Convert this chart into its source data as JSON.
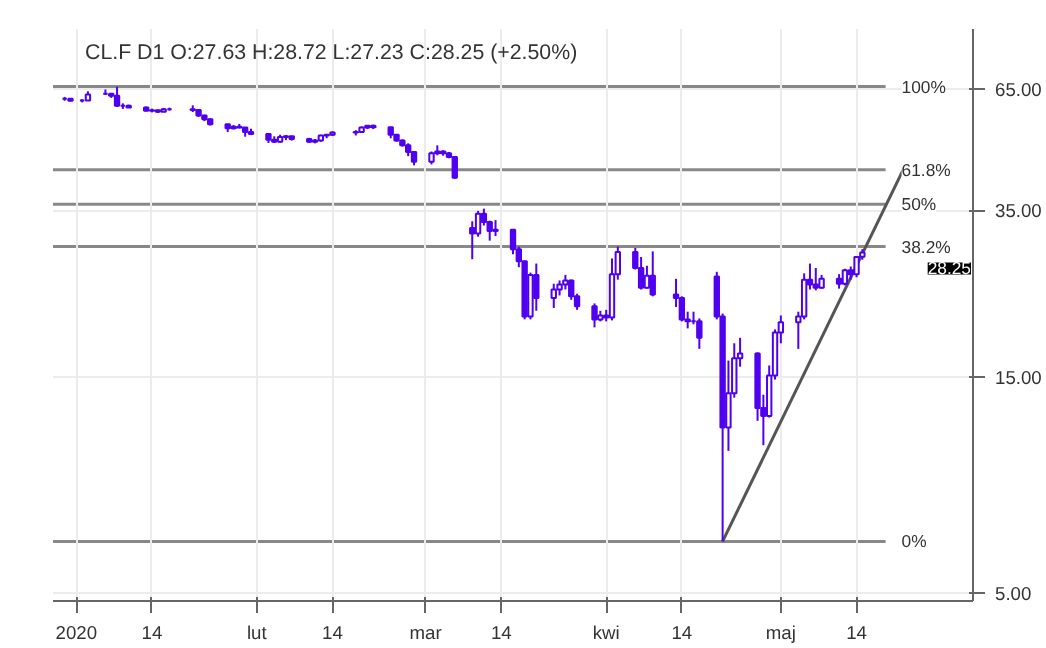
{
  "chart_data": {
    "type": "candlestick",
    "title": "CL.F  D1  O:27.63  H:28.72  L:27.23  C:28.25  (+2.50%)",
    "x": [
      "2019-12-30",
      "2019-12-31",
      "2020-01-02",
      "2020-01-03",
      "2020-01-06",
      "2020-01-07",
      "2020-01-08",
      "2020-01-09",
      "2020-01-10",
      "2020-01-13",
      "2020-01-14",
      "2020-01-15",
      "2020-01-16",
      "2020-01-17",
      "2020-01-21",
      "2020-01-22",
      "2020-01-23",
      "2020-01-24",
      "2020-01-27",
      "2020-01-28",
      "2020-01-29",
      "2020-01-30",
      "2020-01-31",
      "2020-02-03",
      "2020-02-04",
      "2020-02-05",
      "2020-02-06",
      "2020-02-07",
      "2020-02-10",
      "2020-02-11",
      "2020-02-12",
      "2020-02-13",
      "2020-02-14",
      "2020-02-18",
      "2020-02-19",
      "2020-02-20",
      "2020-02-21",
      "2020-02-24",
      "2020-02-25",
      "2020-02-26",
      "2020-02-27",
      "2020-02-28",
      "2020-03-02",
      "2020-03-03",
      "2020-03-04",
      "2020-03-05",
      "2020-03-06",
      "2020-03-09",
      "2020-03-10",
      "2020-03-11",
      "2020-03-12",
      "2020-03-13",
      "2020-03-16",
      "2020-03-17",
      "2020-03-18",
      "2020-03-19",
      "2020-03-20",
      "2020-03-23",
      "2020-03-24",
      "2020-03-25",
      "2020-03-26",
      "2020-03-27",
      "2020-03-30",
      "2020-03-31",
      "2020-04-01",
      "2020-04-02",
      "2020-04-03",
      "2020-04-06",
      "2020-04-07",
      "2020-04-08",
      "2020-04-09",
      "2020-04-13",
      "2020-04-14",
      "2020-04-15",
      "2020-04-16",
      "2020-04-17",
      "2020-04-20",
      "2020-04-21",
      "2020-04-22",
      "2020-04-23",
      "2020-04-24",
      "2020-04-27",
      "2020-04-28",
      "2020-04-29",
      "2020-04-30",
      "2020-05-01",
      "2020-05-04",
      "2020-05-05",
      "2020-05-06",
      "2020-05-07",
      "2020-05-08",
      "2020-05-11",
      "2020-05-12",
      "2020-05-13",
      "2020-05-14",
      "2020-05-15"
    ],
    "ohlc": [
      [
        61.7,
        62.3,
        61.1,
        61.7
      ],
      [
        61.7,
        61.9,
        60.9,
        61.1
      ],
      [
        61.2,
        61.6,
        60.6,
        61.2
      ],
      [
        61.2,
        64.1,
        61.1,
        63.1
      ],
      [
        63.3,
        64.7,
        62.9,
        63.3
      ],
      [
        63.3,
        63.5,
        62.0,
        62.7
      ],
      [
        62.7,
        65.65,
        59.2,
        59.6
      ],
      [
        59.6,
        60.3,
        58.6,
        59.6
      ],
      [
        59.6,
        59.9,
        58.9,
        59.0
      ],
      [
        59.0,
        59.3,
        57.9,
        58.1
      ],
      [
        58.1,
        58.7,
        57.6,
        58.2
      ],
      [
        58.2,
        58.4,
        57.4,
        57.8
      ],
      [
        57.8,
        58.9,
        57.7,
        58.5
      ],
      [
        58.5,
        59.0,
        58.1,
        58.5
      ],
      [
        58.5,
        59.7,
        57.7,
        58.3
      ],
      [
        58.3,
        58.4,
        56.3,
        56.7
      ],
      [
        56.7,
        56.9,
        55.1,
        55.6
      ],
      [
        55.6,
        55.9,
        53.9,
        54.2
      ],
      [
        54.2,
        54.3,
        52.1,
        53.1
      ],
      [
        53.1,
        54.0,
        52.8,
        53.5
      ],
      [
        53.5,
        54.3,
        53.1,
        53.3
      ],
      [
        53.3,
        53.4,
        50.9,
        52.1
      ],
      [
        52.1,
        53.0,
        51.3,
        51.6
      ],
      [
        51.6,
        51.8,
        49.3,
        50.1
      ],
      [
        50.1,
        51.0,
        49.3,
        49.6
      ],
      [
        49.6,
        51.4,
        49.4,
        50.8
      ],
      [
        50.8,
        51.3,
        50.0,
        51.0
      ],
      [
        51.0,
        51.1,
        49.9,
        50.3
      ],
      [
        50.3,
        50.6,
        49.3,
        49.6
      ],
      [
        49.6,
        50.3,
        49.2,
        49.9
      ],
      [
        49.9,
        51.4,
        49.6,
        51.2
      ],
      [
        51.2,
        51.6,
        50.5,
        51.4
      ],
      [
        51.4,
        52.3,
        51.1,
        52.0
      ],
      [
        52.0,
        52.6,
        51.2,
        52.1
      ],
      [
        52.1,
        53.6,
        51.9,
        53.3
      ],
      [
        53.3,
        54.0,
        52.9,
        53.8
      ],
      [
        53.8,
        54.1,
        52.9,
        53.4
      ],
      [
        53.4,
        53.5,
        50.5,
        51.4
      ],
      [
        51.4,
        51.6,
        49.6,
        49.9
      ],
      [
        49.9,
        50.2,
        48.4,
        48.7
      ],
      [
        48.7,
        49.2,
        46.1,
        47.1
      ],
      [
        47.1,
        47.3,
        44.0,
        44.8
      ],
      [
        44.8,
        47.2,
        44.2,
        46.8
      ],
      [
        46.8,
        48.7,
        46.3,
        47.2
      ],
      [
        47.2,
        47.5,
        46.2,
        46.8
      ],
      [
        46.8,
        47.1,
        45.6,
        45.9
      ],
      [
        45.9,
        46.0,
        41.1,
        41.3
      ],
      [
        32.0,
        33.1,
        27.3,
        31.1
      ],
      [
        31.1,
        34.9,
        30.6,
        34.4
      ],
      [
        34.4,
        35.3,
        32.4,
        33.0
      ],
      [
        33.0,
        33.2,
        30.0,
        31.5
      ],
      [
        31.5,
        33.3,
        30.7,
        31.7
      ],
      [
        31.7,
        31.8,
        28.0,
        28.7
      ],
      [
        28.7,
        29.1,
        26.2,
        27.0
      ],
      [
        27.0,
        27.1,
        20.1,
        20.4
      ],
      [
        20.4,
        25.5,
        20.1,
        25.2
      ],
      [
        25.2,
        26.7,
        21.0,
        22.4
      ],
      [
        22.4,
        24.1,
        21.3,
        23.4
      ],
      [
        23.4,
        24.5,
        22.7,
        24.0
      ],
      [
        24.0,
        25.2,
        23.4,
        24.5
      ],
      [
        24.5,
        24.6,
        22.2,
        22.6
      ],
      [
        22.6,
        22.9,
        21.1,
        21.5
      ],
      [
        21.5,
        21.8,
        19.3,
        20.1
      ],
      [
        20.1,
        21.0,
        19.9,
        20.5
      ],
      [
        20.5,
        21.1,
        19.9,
        20.3
      ],
      [
        20.3,
        27.4,
        20.0,
        25.3
      ],
      [
        25.3,
        29.1,
        24.6,
        28.3
      ],
      [
        28.3,
        28.9,
        25.9,
        26.1
      ],
      [
        26.1,
        27.6,
        23.4,
        23.6
      ],
      [
        23.6,
        26.4,
        23.5,
        25.1
      ],
      [
        25.1,
        28.4,
        22.6,
        22.8
      ],
      [
        22.8,
        24.7,
        21.4,
        22.4
      ],
      [
        22.4,
        22.6,
        19.9,
        20.1
      ],
      [
        20.1,
        20.9,
        19.2,
        19.9
      ],
      [
        19.9,
        20.9,
        19.6,
        19.9
      ],
      [
        19.9,
        20.2,
        17.3,
        18.3
      ],
      [
        25.0,
        25.6,
        20.1,
        20.4
      ],
      [
        20.4,
        20.7,
        6.5,
        11.6
      ],
      [
        11.6,
        16.3,
        10.3,
        13.8
      ],
      [
        13.8,
        17.8,
        13.5,
        16.5
      ],
      [
        16.5,
        18.3,
        15.8,
        16.9
      ],
      [
        16.9,
        17.0,
        12.0,
        12.8
      ],
      [
        12.8,
        13.7,
        10.6,
        12.3
      ],
      [
        12.3,
        15.9,
        12.2,
        15.1
      ],
      [
        15.1,
        19.1,
        14.8,
        18.8
      ],
      [
        18.8,
        20.5,
        17.8,
        19.8
      ],
      [
        19.8,
        20.9,
        17.3,
        20.4
      ],
      [
        20.4,
        25.4,
        20.1,
        24.6
      ],
      [
        24.6,
        26.7,
        23.4,
        24.0
      ],
      [
        24.0,
        26.1,
        23.3,
        23.6
      ],
      [
        23.6,
        25.2,
        23.5,
        24.7
      ],
      [
        24.7,
        25.3,
        23.5,
        24.1
      ],
      [
        24.1,
        26.0,
        23.9,
        25.8
      ],
      [
        25.8,
        26.3,
        24.6,
        25.3
      ],
      [
        25.3,
        27.7,
        24.9,
        27.6
      ],
      [
        27.63,
        28.72,
        27.23,
        28.25
      ]
    ],
    "color": "#5000f0",
    "series": [
      {
        "type": "line",
        "color": "#555555",
        "x": [
          "2020-04-21",
          "2020-05-22"
        ],
        "values": [
          6.5,
          43.0
        ]
      }
    ],
    "ref_lines": [
      {
        "axis": "y",
        "value": 65.65,
        "color": "#888888"
      },
      {
        "axis": "y",
        "value": 43.0,
        "color": "#888888"
      },
      {
        "axis": "y",
        "value": 36.1,
        "color": "#888888"
      },
      {
        "axis": "y",
        "value": 29.1,
        "color": "#888888"
      },
      {
        "axis": "y",
        "value": 6.5,
        "color": "#888888"
      }
    ],
    "annotations": [
      "100%",
      "61.8%",
      "50%",
      "38.2%",
      "0%",
      "28.25"
    ],
    "log": true,
    "xlim": [
      "2019-12-28",
      "2020-06-03"
    ],
    "xticks": [
      {
        "value": "2020-01-01",
        "label": "2020"
      },
      {
        "value": "2020-01-14",
        "label": "14"
      },
      {
        "value": "2020-02-01",
        "label": "lut"
      },
      {
        "value": "2020-02-14",
        "label": "14"
      },
      {
        "value": "2020-03-01",
        "label": "mar"
      },
      {
        "value": "2020-03-14",
        "label": "14"
      },
      {
        "value": "2020-04-01",
        "label": "kwi"
      },
      {
        "value": "2020-04-14",
        "label": "14"
      },
      {
        "value": "2020-05-01",
        "label": "maj"
      },
      {
        "value": "2020-05-14",
        "label": "14"
      }
    ],
    "ylim": [
      4.8,
      88
    ],
    "yticks": [
      {
        "value": 5,
        "label": "5.00"
      },
      {
        "value": 15,
        "label": "15.00"
      },
      {
        "value": 35,
        "label": "35.00"
      },
      {
        "value": 65,
        "label": "65.00"
      }
    ],
    "grid": true
  }
}
